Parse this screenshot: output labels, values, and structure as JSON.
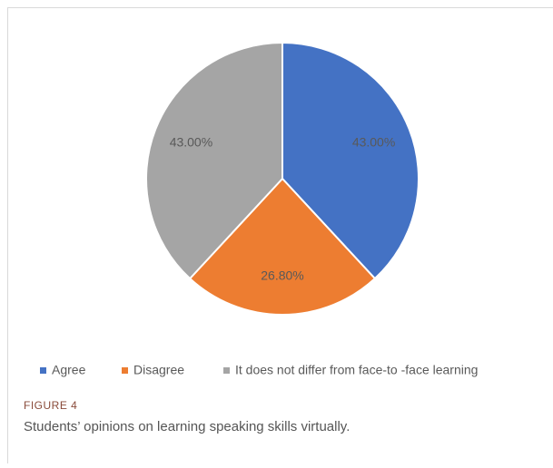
{
  "chart_data": {
    "type": "pie",
    "categories": [
      "Agree",
      "Disagree",
      "It does not differ from face-to -face learning"
    ],
    "values": [
      43,
      26.8,
      43
    ],
    "value_labels": [
      "43.00%",
      "26.80%",
      "43.00%"
    ],
    "colors": [
      "#4472c4",
      "#ed7d31",
      "#a5a5a5"
    ],
    "legend": "bottom"
  },
  "figure": {
    "label": "FIGURE 4",
    "caption": "Students’ opinions on learning speaking skills virtually."
  }
}
